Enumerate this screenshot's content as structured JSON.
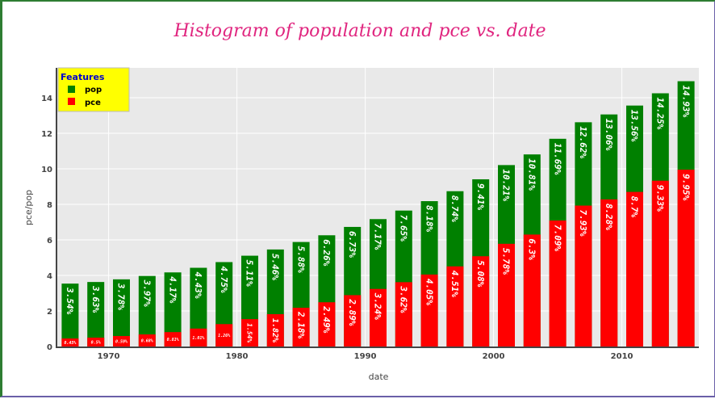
{
  "chart_data": {
    "type": "bar",
    "barmode": "overlay",
    "title": "Histogram of population and pce vs. date",
    "xlabel": "date",
    "ylabel": "pce/pop",
    "ylim": [
      0,
      15.5
    ],
    "xlim": [
      1966,
      2016
    ],
    "x_ticks": [
      1970,
      1980,
      1990,
      2000,
      2010
    ],
    "y_ticks": [
      0,
      2,
      4,
      6,
      8,
      10,
      12,
      14
    ],
    "grid": true,
    "legend": {
      "title": "Features",
      "placement": "top-left",
      "entries": [
        "pop",
        "pce"
      ]
    },
    "x": [
      1967,
      1969,
      1971,
      1973,
      1975,
      1977,
      1979,
      1981,
      1983,
      1985,
      1987,
      1989,
      1991,
      1993,
      1995,
      1997,
      1999,
      2001,
      2003,
      2005,
      2007,
      2009,
      2011,
      2013,
      2015
    ],
    "series": [
      {
        "name": "pop",
        "color": "#008000",
        "values": [
          3.54,
          3.63,
          3.78,
          3.97,
          4.17,
          4.43,
          4.75,
          5.11,
          5.46,
          5.88,
          6.26,
          6.73,
          7.17,
          7.65,
          8.18,
          8.74,
          9.41,
          10.21,
          10.81,
          11.69,
          12.62,
          13.06,
          13.56,
          14.25,
          14.93
        ],
        "labels": [
          "3.54%",
          "3.63%",
          "3.78%",
          "3.97%",
          "4.17%",
          "4.43%",
          "4.75%",
          "5.11%",
          "5.46%",
          "5.88%",
          "6.26%",
          "6.73%",
          "7.17%",
          "7.65%",
          "8.18%",
          "8.74%",
          "9.41%",
          "10.21%",
          "10.81%",
          "11.69%",
          "12.62%",
          "13.06%",
          "13.56%",
          "14.25%",
          "14.93%"
        ]
      },
      {
        "name": "pce",
        "color": "#ff0000",
        "values": [
          0.45,
          0.5,
          0.59,
          0.68,
          0.81,
          1.01,
          1.26,
          1.54,
          1.82,
          2.18,
          2.49,
          2.89,
          3.24,
          3.62,
          4.05,
          4.51,
          5.08,
          5.78,
          6.3,
          7.09,
          7.93,
          8.28,
          8.7,
          9.33,
          9.95
        ],
        "labels": [
          "0.45%",
          "0.5%",
          "0.59%",
          "0.68%",
          "0.81%",
          "1.01%",
          "1.26%",
          "1.54%",
          "1.82%",
          "2.18%",
          "2.49%",
          "2.89%",
          "3.24%",
          "3.62%",
          "4.05%",
          "4.51%",
          "5.08%",
          "5.78%",
          "6.3%",
          "7.09%",
          "7.93%",
          "8.28%",
          "8.7%",
          "9.33%",
          "9.95%"
        ]
      }
    ],
    "colors": {
      "plot_bg": "#e9e9e9",
      "grid": "#ffffff",
      "legend_bg": "#ffff00",
      "title": "#e0257f"
    }
  }
}
